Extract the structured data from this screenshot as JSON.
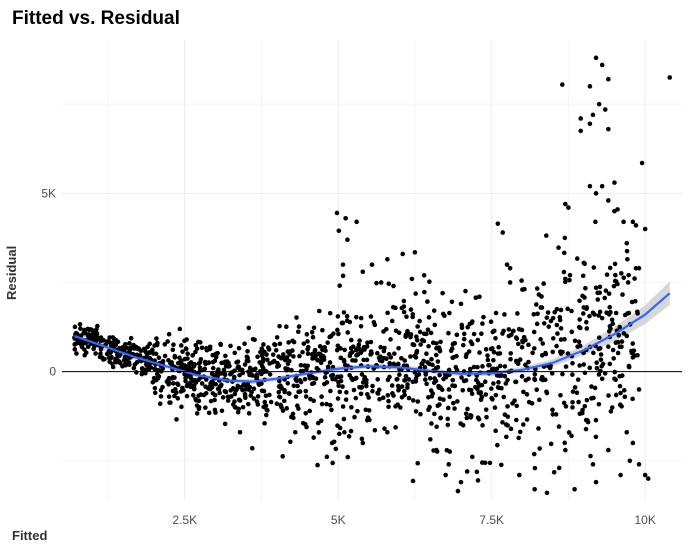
{
  "chart_data": {
    "type": "scatter",
    "title": "Fitted vs. Residual",
    "xlabel": "Fitted",
    "ylabel": "Residual",
    "xlim": [
      500,
      10600
    ],
    "ylim": [
      -3600,
      9300
    ],
    "x_ticks": [
      2500,
      5000,
      7500,
      10000
    ],
    "x_tick_labels": [
      "2.5K",
      "5K",
      "7.5K",
      "10K"
    ],
    "y_ticks": [
      0,
      5000
    ],
    "y_tick_labels": [
      "0",
      "5K"
    ],
    "reference_line": 0,
    "grid": true,
    "colors": {
      "points": "#000000",
      "smooth": "#3366ff",
      "band": "#bdbdbd",
      "grid": "#ebebeb"
    },
    "points": [
      [
        4980,
        4450
      ],
      [
        5120,
        4300
      ],
      [
        5300,
        4200
      ],
      [
        5010,
        3950
      ],
      [
        5150,
        3700
      ],
      [
        5550,
        3000
      ],
      [
        5800,
        3150
      ],
      [
        6050,
        3300
      ],
      [
        5400,
        2800
      ],
      [
        5900,
        2400
      ],
      [
        7600,
        4150
      ],
      [
        7680,
        3900
      ],
      [
        7750,
        3000
      ],
      [
        7800,
        2900
      ],
      [
        8700,
        4700
      ],
      [
        8750,
        4600
      ],
      [
        9500,
        4500
      ],
      [
        9550,
        4550
      ],
      [
        9400,
        4800
      ],
      [
        9300,
        5200
      ],
      [
        9100,
        5200
      ],
      [
        9500,
        5300
      ],
      [
        9200,
        5000
      ],
      [
        9950,
        5850
      ],
      [
        9800,
        4200
      ],
      [
        9850,
        4100
      ],
      [
        9700,
        3600
      ],
      [
        9850,
        2900
      ],
      [
        9900,
        2900
      ],
      [
        9000,
        3050
      ],
      [
        8650,
        8050
      ],
      [
        8950,
        7100
      ],
      [
        9100,
        8000
      ],
      [
        9150,
        7200
      ],
      [
        9200,
        8800
      ],
      [
        9300,
        8600
      ],
      [
        9400,
        8200
      ],
      [
        9250,
        7500
      ],
      [
        9350,
        7350
      ],
      [
        9400,
        6800
      ],
      [
        9100,
        6950
      ],
      [
        8950,
        6750
      ],
      [
        10400,
        8250
      ],
      [
        10000,
        4000
      ],
      [
        8700,
        2600
      ],
      [
        8800,
        1700
      ],
      [
        9000,
        1800
      ],
      [
        9150,
        1650
      ],
      [
        9300,
        1500
      ],
      [
        9400,
        700
      ],
      [
        9300,
        -200
      ],
      [
        9500,
        -200
      ],
      [
        9600,
        -600
      ],
      [
        9700,
        -1700
      ],
      [
        9800,
        -2000
      ],
      [
        9900,
        -2600
      ],
      [
        9750,
        -2500
      ],
      [
        10000,
        -2900
      ],
      [
        10050,
        -3000
      ],
      [
        9600,
        -2900
      ],
      [
        9200,
        -3100
      ],
      [
        8850,
        -3300
      ],
      [
        9150,
        -2600
      ],
      [
        9400,
        -2200
      ],
      [
        8700,
        -2200
      ],
      [
        8800,
        -1800
      ],
      [
        8600,
        -2700
      ],
      [
        8400,
        -3400
      ],
      [
        8200,
        -3300
      ],
      [
        7950,
        -2900
      ],
      [
        6950,
        -3350
      ],
      [
        7000,
        -3100
      ],
      [
        6800,
        -2600
      ],
      [
        6600,
        -2200
      ],
      [
        6750,
        -2900
      ],
      [
        7100,
        -2800
      ],
      [
        6500,
        -1900
      ],
      [
        5800,
        -1700
      ],
      [
        5400,
        -2000
      ],
      [
        4600,
        -1850
      ],
      [
        4900,
        -2000
      ],
      [
        4300,
        -1700
      ],
      [
        3600,
        -2150
      ],
      [
        3400,
        -1700
      ],
      [
        3800,
        -1450
      ],
      [
        5100,
        -1700
      ],
      [
        4000,
        -900
      ],
      [
        3000,
        -1150
      ],
      [
        2700,
        -950
      ],
      [
        2100,
        -900
      ],
      [
        7800,
        2500
      ],
      [
        8000,
        2300
      ],
      [
        8500,
        1500
      ],
      [
        8300,
        1800
      ],
      [
        7300,
        2100
      ],
      [
        7000,
        1900
      ],
      [
        6400,
        2700
      ],
      [
        6200,
        2600
      ],
      [
        6700,
        2200
      ],
      [
        5700,
        2500
      ],
      [
        9700,
        1000
      ],
      [
        9800,
        400
      ],
      [
        9900,
        -500
      ],
      [
        8900,
        700
      ],
      [
        9000,
        200
      ],
      [
        9050,
        -800
      ],
      [
        8550,
        -1200
      ],
      [
        8400,
        -600
      ],
      [
        8100,
        -200
      ],
      [
        7900,
        300
      ]
    ],
    "smooth": [
      [
        700,
        1000
      ],
      [
        1200,
        700
      ],
      [
        1700,
        400
      ],
      [
        2200,
        150
      ],
      [
        2700,
        -100
      ],
      [
        3200,
        -250
      ],
      [
        3600,
        -280
      ],
      [
        4000,
        -200
      ],
      [
        4500,
        -50
      ],
      [
        5000,
        80
      ],
      [
        5500,
        150
      ],
      [
        6000,
        120
      ],
      [
        6500,
        20
      ],
      [
        7000,
        -60
      ],
      [
        7500,
        -50
      ],
      [
        8000,
        50
      ],
      [
        8500,
        250
      ],
      [
        9000,
        600
      ],
      [
        9500,
        1050
      ],
      [
        10000,
        1600
      ],
      [
        10400,
        2200
      ]
    ],
    "band_halfwidth": [
      150,
      110,
      80,
      60,
      60,
      70,
      70,
      60,
      60,
      70,
      70,
      70,
      70,
      70,
      70,
      80,
      100,
      140,
      200,
      260,
      330
    ]
  }
}
